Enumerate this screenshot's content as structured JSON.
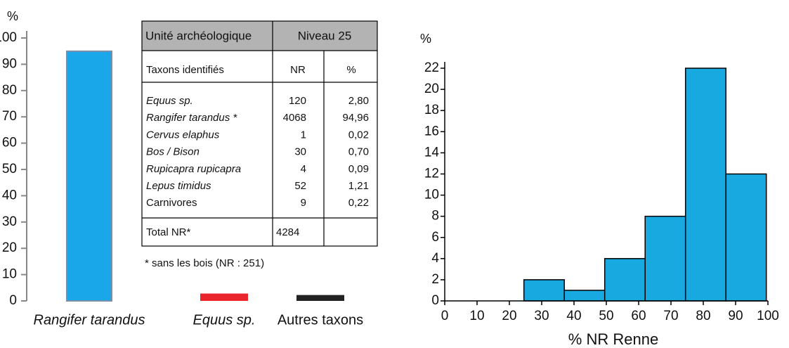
{
  "chart_data": [
    {
      "type": "bar",
      "ylabel": "%",
      "categories": [
        "Rangifer tarandus",
        "Equus sp.",
        "Autres taxons"
      ],
      "values": [
        94.96,
        2.8,
        2.24
      ],
      "colors": [
        "#1aa7ea",
        "#e8262b",
        "#222222"
      ],
      "ylim": [
        0,
        100
      ],
      "yticks": [
        0,
        10,
        20,
        30,
        40,
        50,
        60,
        70,
        80,
        90,
        100
      ]
    },
    {
      "type": "histogram",
      "ylabel": "%",
      "xlabel": "% NR Renne",
      "bins": [
        24.5,
        37,
        49.5,
        62,
        74.5,
        87,
        99.5
      ],
      "values": [
        2,
        1,
        4,
        8,
        22,
        12
      ],
      "color": "#19a9e1",
      "xlim": [
        0,
        100
      ],
      "xticks": [
        0,
        10,
        20,
        30,
        40,
        50,
        60,
        70,
        80,
        90,
        100
      ],
      "ylim": [
        0,
        22.6
      ],
      "yticks": [
        0,
        2,
        4,
        6,
        8,
        10,
        12,
        14,
        16,
        18,
        20,
        22
      ]
    }
  ],
  "table": {
    "header": [
      "Unité archéologique",
      "Niveau 25"
    ],
    "columns": [
      "Taxons identifiés",
      "NR",
      "%"
    ],
    "rows": [
      [
        "Equus sp.",
        "120",
        "2,80"
      ],
      [
        "Rangifer tarandus *",
        "4068",
        "94,96"
      ],
      [
        "Cervus elaphus",
        "1",
        "0,02"
      ],
      [
        "Bos / Bison",
        "30",
        "0,70"
      ],
      [
        "Rupicapra rupicapra",
        "4",
        "0,09"
      ],
      [
        "Lepus timidus",
        "52",
        "1,21"
      ],
      [
        "Carnivores",
        "9",
        "0,22"
      ]
    ],
    "total": [
      "Total NR*",
      "4284"
    ],
    "footnote": "* sans les bois (NR : 251)"
  }
}
